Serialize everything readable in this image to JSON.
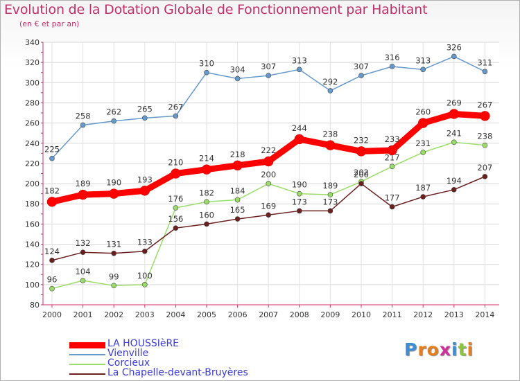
{
  "chart_data": {
    "type": "line",
    "title": "Evolution de la Dotation Globale de Fonctionnement par Habitant",
    "subtitle": "(en € et par an)",
    "xlabel": "",
    "ylabel": "",
    "ylim": [
      80,
      340
    ],
    "yticks": [
      80,
      100,
      120,
      140,
      160,
      180,
      200,
      220,
      240,
      260,
      280,
      300,
      320,
      340
    ],
    "categories": [
      "2000",
      "2001",
      "2002",
      "2003",
      "2004",
      "2005",
      "2006",
      "2007",
      "2008",
      "2009",
      "2010",
      "2011",
      "2012",
      "2013",
      "2014"
    ],
    "grid": true,
    "legend_position": "bottom-left",
    "series": [
      {
        "name": "LA HOUSSIèRE",
        "color": "#ff0000",
        "emphasis": true,
        "values": [
          182,
          189,
          190,
          193,
          210,
          214,
          218,
          222,
          244,
          238,
          232,
          233,
          260,
          269,
          267
        ]
      },
      {
        "name": "Vienville",
        "color": "#6699cc",
        "emphasis": false,
        "values": [
          225,
          258,
          262,
          265,
          267,
          310,
          304,
          307,
          313,
          292,
          307,
          316,
          313,
          326,
          311
        ]
      },
      {
        "name": "Corcieux",
        "color": "#99dd66",
        "emphasis": false,
        "values": [
          96,
          104,
          99,
          100,
          176,
          182,
          184,
          200,
          190,
          189,
          202,
          217,
          231,
          241,
          238
        ]
      },
      {
        "name": "La Chapelle-devant-Bruyères",
        "color": "#6b1f1f",
        "emphasis": false,
        "values": [
          124,
          132,
          131,
          133,
          156,
          160,
          165,
          169,
          173,
          173,
          200,
          177,
          187,
          194,
          207
        ]
      }
    ]
  },
  "logo": {
    "letters": [
      "P",
      "r",
      "o",
      "x",
      "i",
      "t",
      "i"
    ],
    "colors": [
      "#3b8fd6",
      "#e87d1e",
      "#e87d1e",
      "#d0309a",
      "#3b8fd6",
      "#8cc63f",
      "#e87d1e"
    ]
  }
}
